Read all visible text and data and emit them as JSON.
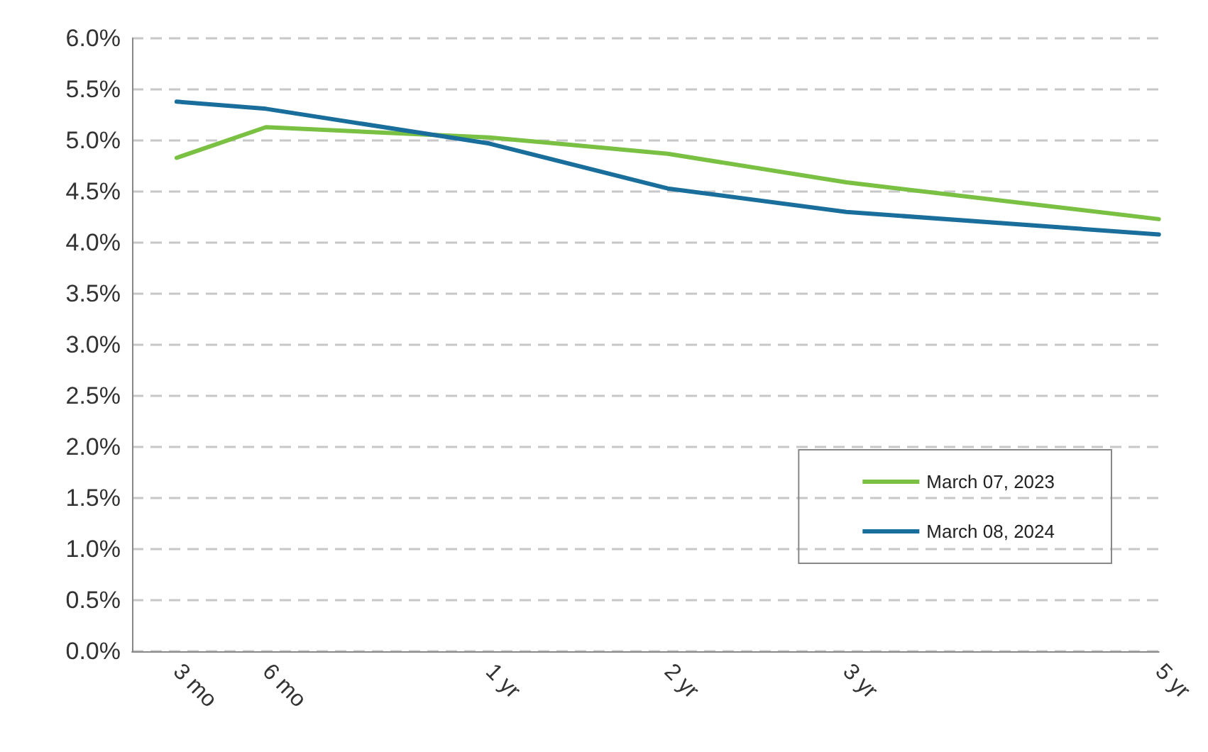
{
  "chart_data": {
    "type": "line",
    "categories": [
      null,
      "3 mo",
      null,
      "6 mo",
      null,
      null,
      null,
      null,
      "1 yr",
      null,
      null,
      null,
      "2 yr",
      null,
      null,
      null,
      "3 yr",
      null,
      null,
      null,
      null,
      null,
      null,
      "5 yr"
    ],
    "series": [
      {
        "name": "March 07, 2023",
        "color": "#7ac143",
        "values": [
          null,
          4.83,
          null,
          5.13,
          null,
          null,
          null,
          null,
          5.03,
          null,
          null,
          null,
          4.87,
          null,
          null,
          null,
          4.59,
          null,
          null,
          null,
          null,
          null,
          null,
          4.23
        ]
      },
      {
        "name": "March 08, 2024",
        "color": "#1a6e9c",
        "values": [
          null,
          5.38,
          null,
          5.31,
          null,
          null,
          null,
          null,
          4.97,
          null,
          null,
          null,
          4.53,
          null,
          null,
          null,
          4.3,
          null,
          null,
          null,
          null,
          null,
          null,
          4.08
        ]
      }
    ],
    "ylim": [
      0,
      6
    ],
    "yticks": [
      {
        "value": 0,
        "label": "0.0%"
      },
      {
        "value": 0.5,
        "label": "0.5%"
      },
      {
        "value": 1,
        "label": "1.0%"
      },
      {
        "value": 1.5,
        "label": "1.5%"
      },
      {
        "value": 2,
        "label": "2.0%"
      },
      {
        "value": 2.5,
        "label": "2.5%"
      },
      {
        "value": 3,
        "label": "3.0%"
      },
      {
        "value": 3.5,
        "label": "3.5%"
      },
      {
        "value": 4,
        "label": "4.0%"
      },
      {
        "value": 4.5,
        "label": "4.5%"
      },
      {
        "value": 5,
        "label": "5.0%"
      },
      {
        "value": 5.5,
        "label": "5.5%"
      },
      {
        "value": 6,
        "label": "6.0%"
      }
    ],
    "grid": "y",
    "legend": "bottom right",
    "marker": "none",
    "line_style": "solid"
  }
}
